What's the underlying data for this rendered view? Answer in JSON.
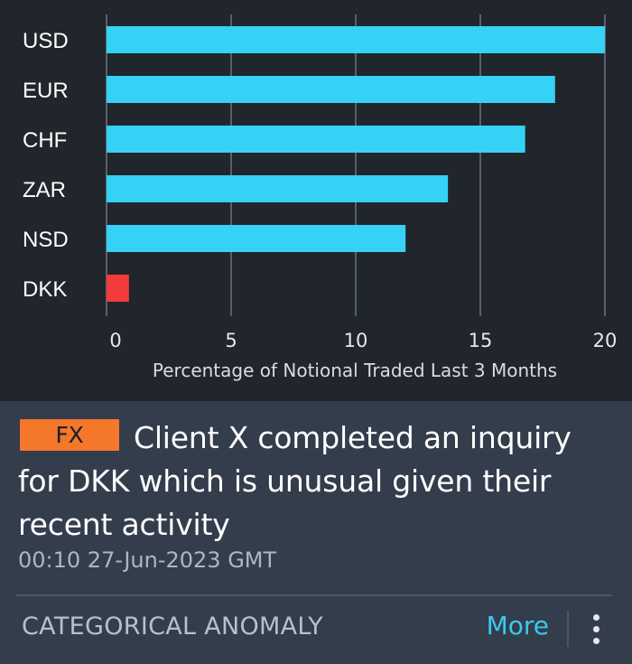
{
  "chart_data": {
    "type": "bar",
    "orientation": "horizontal",
    "categories": [
      "USD",
      "EUR",
      "CHF",
      "ZAR",
      "NSD",
      "DKK"
    ],
    "values": [
      20.0,
      18.0,
      16.8,
      13.7,
      12.0,
      0.9
    ],
    "bar_colors": [
      "#36d2f6",
      "#36d2f6",
      "#36d2f6",
      "#36d2f6",
      "#36d2f6",
      "#f23b3b"
    ],
    "xlabel": "Percentage of Notional Traded Last 3 Months",
    "xticks": [
      "0",
      "5",
      "10",
      "15",
      "20"
    ],
    "xlim": [
      0,
      20
    ],
    "grid": true
  },
  "card": {
    "badge": "FX",
    "headline": "Client X completed an inquiry for DKK which is unusual given their recent activity",
    "timestamp": "00:10 27-Jun-2023 GMT",
    "category": "CATEGORICAL ANOMALY",
    "more_label": "More"
  },
  "colors": {
    "badge": "#f4772a",
    "accent": "#3bc8f0",
    "normal_bar": "#36d2f6",
    "anomaly_bar": "#f23b3b"
  },
  "icons": {
    "menu": "kebab-menu-icon"
  }
}
